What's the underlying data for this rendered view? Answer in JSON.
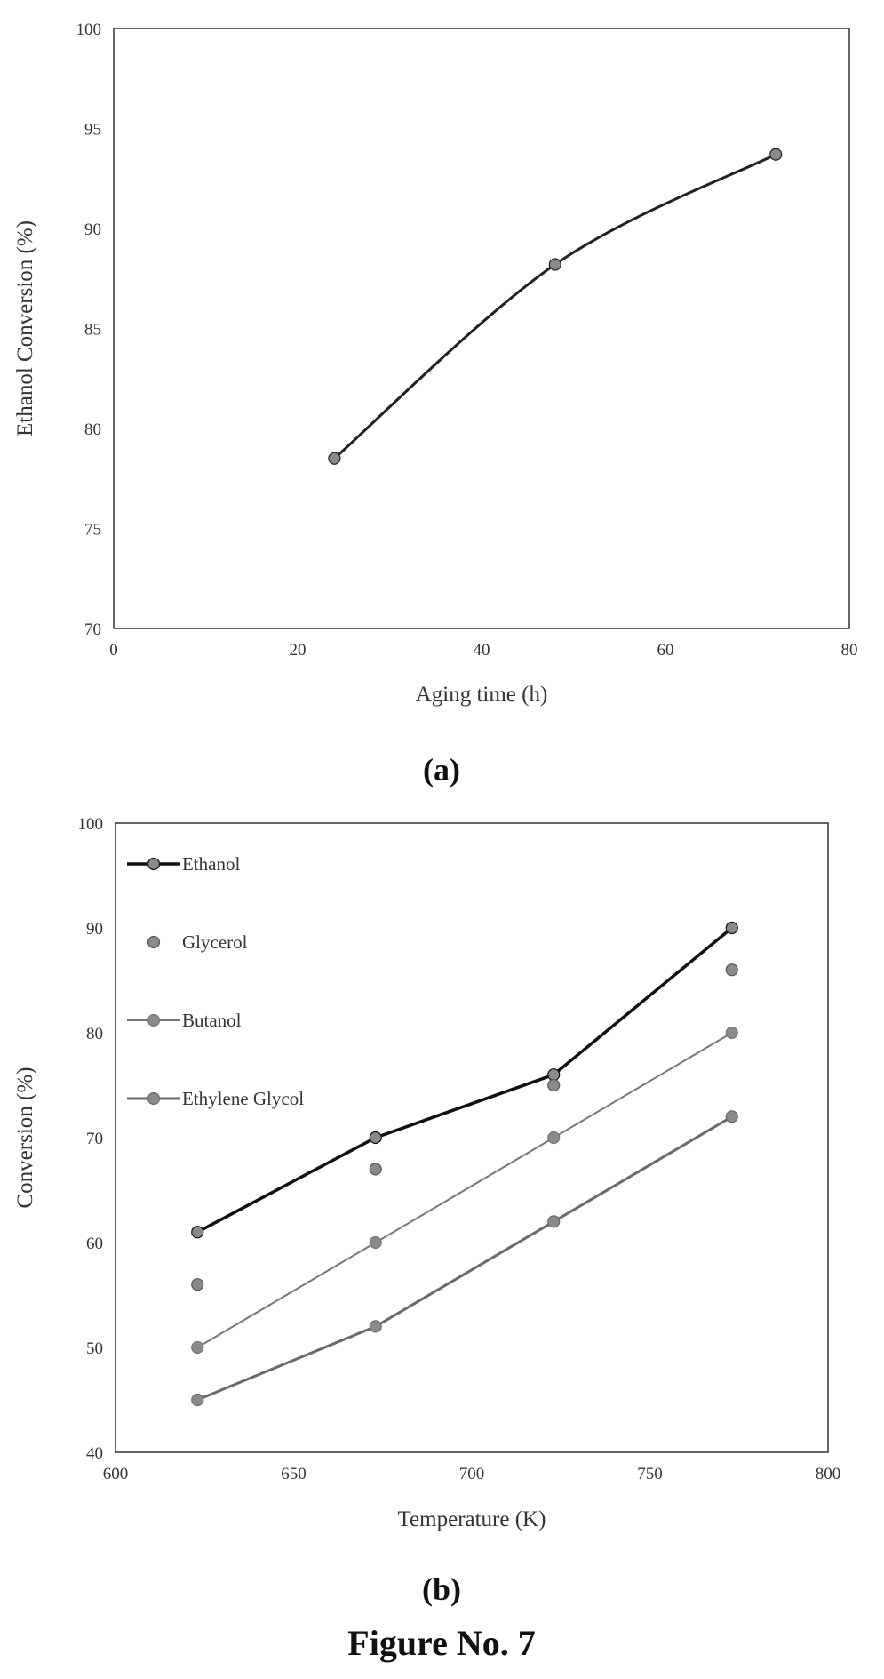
{
  "figure_title": "Figure No. 7",
  "chart_data": [
    {
      "type": "line",
      "caption": "(a)",
      "xlabel": "Aging time (h)",
      "ylabel": "Ethanol Conversion (%)",
      "xlim": [
        0,
        80
      ],
      "ylim": [
        70,
        100
      ],
      "xticks": [
        0,
        20,
        40,
        60,
        80
      ],
      "yticks": [
        70,
        75,
        80,
        85,
        90,
        95,
        100
      ],
      "grid": false,
      "legend": "none",
      "series": [
        {
          "x": [
            24,
            48,
            72
          ],
          "y": [
            78.5,
            88.2,
            93.7
          ],
          "color": "#222222",
          "marker": "circle",
          "line": true
        }
      ]
    },
    {
      "type": "line",
      "caption": "(b)",
      "xlabel": "Temperature (K)",
      "ylabel": "Conversion (%)",
      "xlim": [
        600,
        800
      ],
      "ylim": [
        40,
        100
      ],
      "xticks": [
        600,
        650,
        700,
        750,
        800
      ],
      "yticks": [
        40,
        50,
        60,
        70,
        80,
        90,
        100
      ],
      "grid": false,
      "legend": "top-left",
      "series": [
        {
          "name": "Ethanol",
          "x": [
            623,
            673,
            723,
            773
          ],
          "y": [
            61,
            70,
            76,
            90
          ],
          "color": "#111111",
          "marker": "circle",
          "line": true,
          "line_width": 3.5
        },
        {
          "name": "Glycerol",
          "x": [
            623,
            673,
            723,
            773
          ],
          "y": [
            56,
            67,
            75,
            86
          ],
          "color": "#555555",
          "marker": "circle",
          "line": false
        },
        {
          "name": "Butanol",
          "x": [
            623,
            673,
            723,
            773
          ],
          "y": [
            50,
            60,
            70,
            80
          ],
          "color": "#777777",
          "marker": "circle",
          "line": true,
          "line_width": 2
        },
        {
          "name": "Ethylene Glycol",
          "x": [
            623,
            673,
            723,
            773
          ],
          "y": [
            45,
            52,
            62,
            72
          ],
          "color": "#6a6a6a",
          "marker": "circle",
          "line": true,
          "line_width": 3
        }
      ]
    }
  ]
}
